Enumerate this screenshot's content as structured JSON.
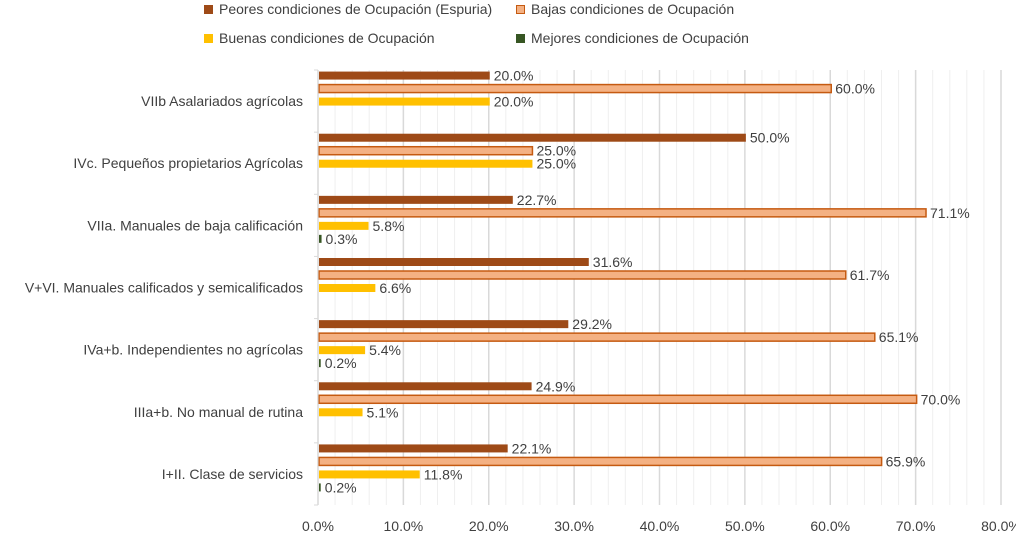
{
  "chart_data": {
    "type": "bar",
    "orientation": "horizontal",
    "title": "",
    "xlabel": "",
    "ylabel": "",
    "xlim": [
      0,
      80
    ],
    "x_ticks": [
      "0.0%",
      "10.0%",
      "20.0%",
      "30.0%",
      "40.0%",
      "50.0%",
      "60.0%",
      "70.0%",
      "80.0%"
    ],
    "x_tick_values": [
      0,
      10,
      20,
      30,
      40,
      50,
      60,
      70,
      80
    ],
    "grid": "vertical minor and major",
    "legend_position": "top",
    "categories": [
      "VIIb Asalariados agrícolas",
      "IVc. Pequeños propietarios Agrícolas",
      "VIIa. Manuales de baja calificación",
      "V+VI. Manuales calificados y semicalificados",
      "IVa+b. Independientes no agrícolas",
      "IIIa+b. No manual de rutina",
      "I+II. Clase de servicios"
    ],
    "series": [
      {
        "name": "Peores condiciones de Ocupación (Espuria)",
        "color": "#9E4A17",
        "values": [
          20.0,
          50.0,
          22.7,
          31.6,
          29.2,
          24.9,
          22.1
        ],
        "labels": [
          "20.0%",
          "50.0%",
          "22.7%",
          "31.6%",
          "29.2%",
          "24.9%",
          "22.1%"
        ]
      },
      {
        "name": "Bajas condiciones de Ocupación",
        "color": "#F4B183",
        "border": "#C55A11",
        "values": [
          60.0,
          25.0,
          71.1,
          61.7,
          65.1,
          70.0,
          65.9
        ],
        "labels": [
          "60.0%",
          "25.0%",
          "71.1%",
          "61.7%",
          "65.1%",
          "70.0%",
          "65.9%"
        ]
      },
      {
        "name": "Buenas condiciones de Ocupación",
        "color": "#FFC000",
        "values": [
          20.0,
          25.0,
          5.8,
          6.6,
          5.4,
          5.1,
          11.8
        ],
        "labels": [
          "20.0%",
          "25.0%",
          "5.8%",
          "6.6%",
          "5.4%",
          "5.1%",
          "11.8%"
        ]
      },
      {
        "name": "Mejores condiciones de Ocupación",
        "color": "#375623",
        "values": [
          null,
          null,
          0.3,
          null,
          0.2,
          null,
          0.2
        ],
        "labels": [
          null,
          null,
          "0.3%",
          null,
          "0.2%",
          null,
          "0.2%"
        ]
      }
    ]
  }
}
